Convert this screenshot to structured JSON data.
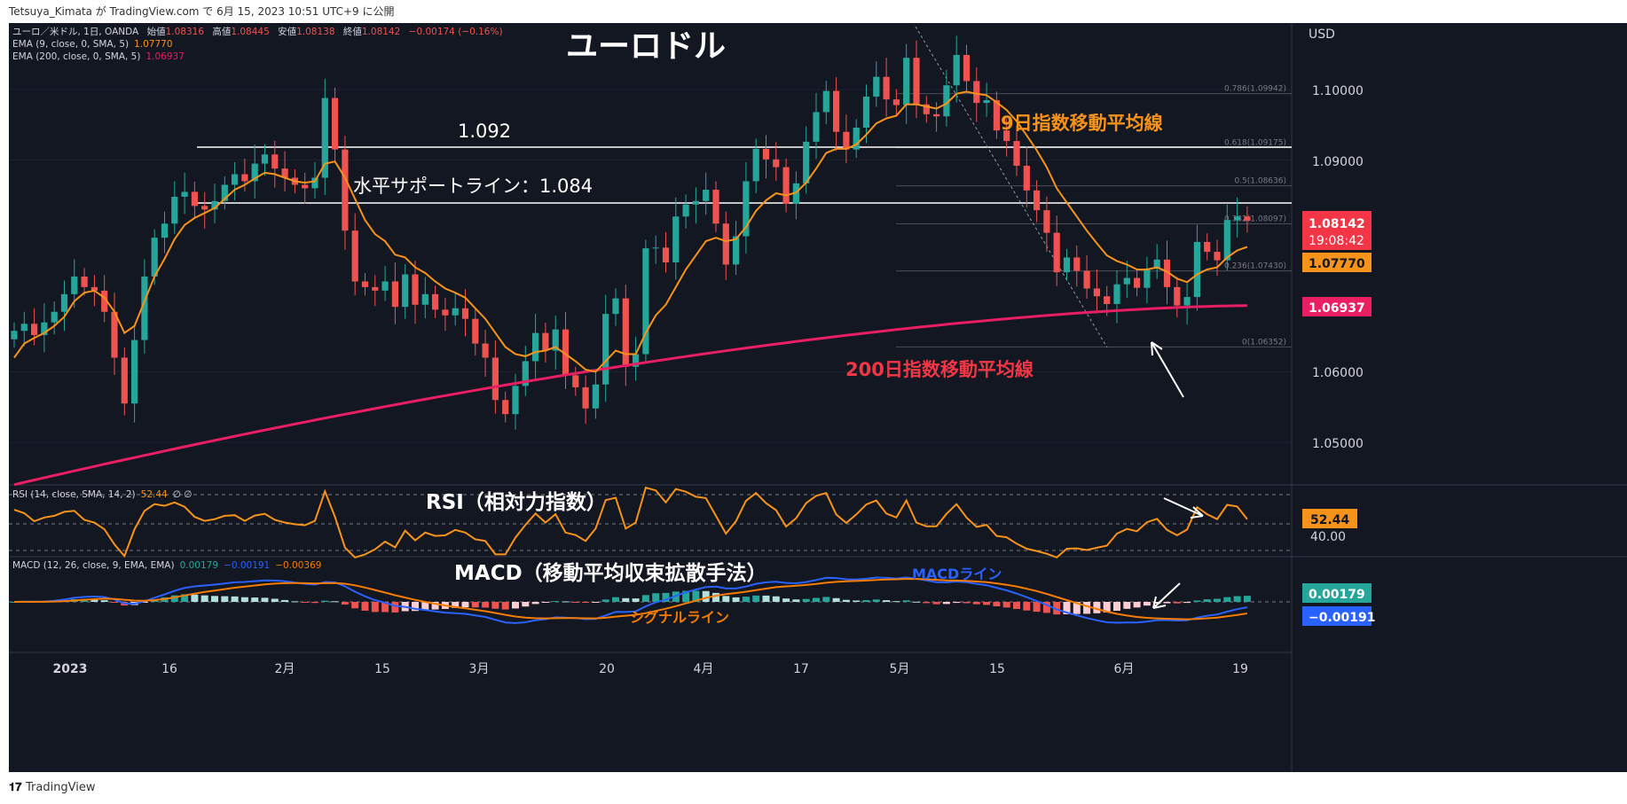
{
  "topbar": {
    "publish_text": "Tetsuya_Kimata が TradingView.com で 6月 15, 2023 10:51 UTC+9 に公開"
  },
  "footer": {
    "brand": "TradingView"
  },
  "legend": {
    "symbol_line": "ユーロ／米ドル, 1日, OANDA",
    "ohlc": [
      {
        "label": "始値",
        "value": "1.08316"
      },
      {
        "label": "高値",
        "value": "1.08445"
      },
      {
        "label": "安値",
        "value": "1.08138"
      },
      {
        "label": "終値",
        "value": "1.08142"
      }
    ],
    "change": "−0.00174 (−0.16%)",
    "ema9_label": "EMA (9, close, 0, SMA, 5)",
    "ema9_value": "1.07770",
    "ema200_label": "EMA (200, close, 0, SMA, 5)",
    "ema200_value": "1.06937",
    "rsi_label": "RSI (14, close, SMA, 14, 2)",
    "rsi_value": "52.44",
    "rsi_extra": "∅ ∅",
    "macd_label": "MACD (12, 26, close, 9, EMA, EMA)",
    "macd_hist": "0.00179",
    "macd_line": "−0.00191",
    "macd_signal": "−0.00369"
  },
  "annotations": {
    "title": "ユーロドル",
    "level_1092": "1.092",
    "support_label": "水平サポートライン：1.084",
    "ema9_label": "9日指数移動平均線",
    "ema200_label": "200日指数移動平均線",
    "rsi_title": "RSI（相対力指数）",
    "macd_title": "MACD（移動平均収束拡散手法）",
    "macd_line_label": "MACDライン",
    "signal_label": "シグナルライン"
  },
  "price_axis": {
    "currency": "USD",
    "ticks": [
      "1.10000",
      "1.09000",
      "1.06000",
      "1.05000"
    ],
    "last_price": "1.08142",
    "countdown": "19:08:42",
    "ema9_tag": "1.07770",
    "ema200_tag": "1.06937",
    "rsi_tag": "52.44",
    "rsi_level": "40.00",
    "macd_hist_tag": "0.00179",
    "macd_line_tag": "−0.00191"
  },
  "fib_labels": [
    "0.786(1.09942)",
    "0.618(1.09175)",
    "0.5(1.08636)",
    "0.382(1.08097)",
    "0.236(1.07430)",
    "0(1.06352)"
  ],
  "time_axis": [
    "2023",
    "16",
    "2月",
    "15",
    "3月",
    "20",
    "4月",
    "17",
    "5月",
    "15",
    "6月",
    "19"
  ],
  "colors": {
    "bg": "#131722",
    "up": "#26a69a",
    "down": "#ef5350",
    "ema9": "#f7931a",
    "ema200": "#e91e63",
    "macd": "#2962ff",
    "signal": "#f57c00",
    "rsi": "#f7931a",
    "orange_text": "#f7931a",
    "pink_text": "#f23645",
    "blue_text": "#2962ff"
  },
  "chart_data": {
    "type": "candlestick",
    "symbol": "EUR/USD",
    "interval": "1D",
    "ylim": [
      1.0445,
      1.1108
    ],
    "horizontal_lines": [
      1.092,
      1.084
    ],
    "fibonacci": [
      {
        "level": 0.786,
        "price": 1.09942
      },
      {
        "level": 0.618,
        "price": 1.09175
      },
      {
        "level": 0.5,
        "price": 1.08636
      },
      {
        "level": 0.382,
        "price": 1.08097
      },
      {
        "level": 0.236,
        "price": 1.0743
      },
      {
        "level": 0,
        "price": 1.06352
      }
    ],
    "close": [
      1.0658,
      1.0668,
      1.0652,
      1.067,
      1.0685,
      1.071,
      1.0735,
      1.072,
      1.0715,
      1.0685,
      1.062,
      1.0555,
      1.0645,
      1.0735,
      1.079,
      1.081,
      1.0848,
      1.0855,
      1.0835,
      1.083,
      1.0842,
      1.0865,
      1.088,
      1.087,
      1.0895,
      1.0908,
      1.0888,
      1.0875,
      1.0865,
      1.086,
      1.0875,
      1.0988,
      1.0915,
      1.08,
      1.0728,
      1.072,
      1.0715,
      1.0728,
      1.0692,
      1.0738,
      1.0695,
      1.071,
      1.0688,
      1.068,
      1.069,
      1.0675,
      1.064,
      1.062,
      1.056,
      1.054,
      1.058,
      1.0615,
      1.0655,
      1.063,
      1.066,
      1.0595,
      1.0578,
      1.0548,
      1.0582,
      1.0682,
      1.0704,
      1.0607,
      1.0625,
      1.0775,
      1.0776,
      1.0755,
      1.082,
      1.0837,
      1.0842,
      1.0858,
      1.081,
      1.0752,
      1.0792,
      1.087,
      1.0916,
      1.0901,
      1.089,
      1.0838,
      1.0867,
      1.0926,
      1.0968,
      1.0998,
      1.094,
      1.0915,
      1.0946,
      1.099,
      1.1018,
      1.0986,
      1.0978,
      1.1045,
      1.0979,
      1.0965,
      1.0962,
      1.1006,
      1.1049,
      1.1012,
      1.0981,
      1.0985,
      1.0942,
      1.0927,
      1.0892,
      1.0857,
      1.0829,
      1.0797,
      1.0741,
      1.0762,
      1.0743,
      1.0718,
      1.0707,
      1.0696,
      1.0724,
      1.0733,
      1.0719,
      1.0746,
      1.0759,
      1.072,
      1.0694,
      1.0706,
      1.0784,
      1.077,
      1.0758,
      1.0815,
      1.082,
      1.08142
    ],
    "ema9": [
      1.062,
      1.064,
      1.0648,
      1.0655,
      1.0665,
      1.0678,
      1.07,
      1.0712,
      1.0715,
      1.0705,
      1.0685,
      1.0655,
      1.0665,
      1.07,
      1.0735,
      1.076,
      1.0788,
      1.0808,
      1.0818,
      1.0825,
      1.0832,
      1.0845,
      1.0858,
      1.0865,
      1.0874,
      1.0882,
      1.088,
      1.0875,
      1.087,
      1.0868,
      1.087,
      1.0895,
      1.0898,
      1.0875,
      1.0845,
      1.0815,
      1.0795,
      1.0785,
      1.0766,
      1.0762,
      1.0748,
      1.074,
      1.0728,
      1.0718,
      1.0712,
      1.0705,
      1.069,
      1.0675,
      1.0655,
      1.0635,
      1.0625,
      1.0622,
      1.0628,
      1.063,
      1.0635,
      1.0625,
      1.0615,
      1.0603,
      1.06,
      1.0615,
      1.063,
      1.0625,
      1.0625,
      1.0655,
      1.068,
      1.0695,
      1.072,
      1.0745,
      1.0765,
      1.0785,
      1.079,
      1.0785,
      1.0788,
      1.0805,
      1.0828,
      1.0843,
      1.0853,
      1.085,
      1.0854,
      1.0868,
      1.0888,
      1.091,
      1.0916,
      1.0916,
      1.0922,
      1.0936,
      1.0952,
      1.0959,
      1.0963,
      1.0979,
      1.0979,
      1.0976,
      1.0973,
      1.098,
      1.0994,
      1.0997,
      1.0994,
      1.0992,
      1.0982,
      1.0971,
      1.0955,
      1.0935,
      1.0914,
      1.089,
      1.086,
      1.084,
      1.082,
      1.08,
      1.0782,
      1.0765,
      1.0757,
      1.0752,
      1.0745,
      1.0745,
      1.0748,
      1.0742,
      1.0732,
      1.0727,
      1.0738,
      1.0745,
      1.0748,
      1.0762,
      1.0772,
      1.0777
    ],
    "ema200_range": [
      1.044,
      1.06937
    ],
    "rsi_levels": [
      70,
      30
    ],
    "rsi_last": 52.44,
    "rsi_range": [
      25,
      75
    ],
    "macd_last": {
      "histogram": 0.00179,
      "macd": -0.00191,
      "signal": -0.00369
    },
    "x_tick_labels": [
      "2023",
      "16",
      "2月",
      "15",
      "3月",
      "20",
      "4月",
      "17",
      "5月",
      "15",
      "6月",
      "19"
    ]
  }
}
